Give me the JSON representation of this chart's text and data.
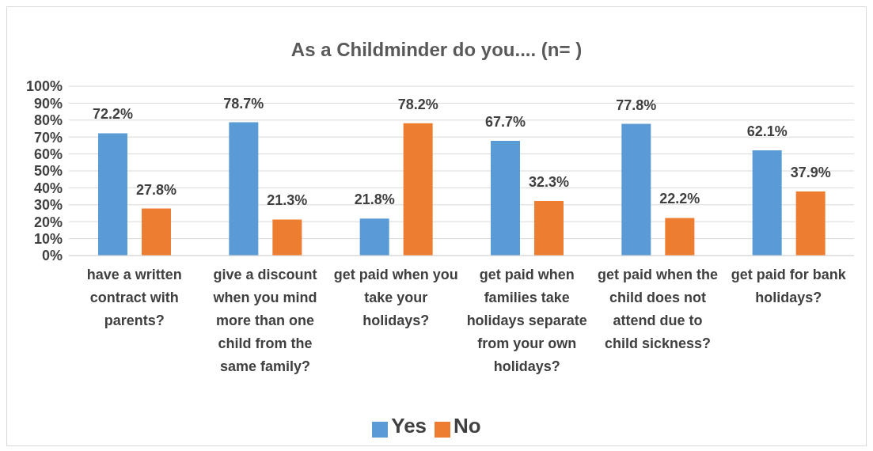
{
  "chart_data": {
    "type": "bar",
    "title": "As a Childminder do you.... (n=   )",
    "categories": [
      "have a written contract with parents?",
      "give a discount when you mind more than one child from the same family?",
      "get paid when you take your holidays?",
      "get paid when families take holidays separate from your own holidays?",
      "get paid when the child does not attend due to child sickness?",
      "get paid for bank holidays?"
    ],
    "series": [
      {
        "name": "Yes",
        "color": "#5b9bd5",
        "values": [
          72.2,
          78.7,
          21.8,
          67.7,
          77.8,
          62.1
        ],
        "value_labels": [
          "72.2%",
          "78.7%",
          "21.8%",
          "67.7%",
          "77.8%",
          "62.1%"
        ]
      },
      {
        "name": "No",
        "color": "#ed7d31",
        "values": [
          27.8,
          21.3,
          78.2,
          32.3,
          22.2,
          37.9
        ],
        "value_labels": [
          "27.8%",
          "21.3%",
          "78.2%",
          "32.3%",
          "22.2%",
          "37.9%"
        ]
      }
    ],
    "ylim": [
      0,
      100
    ],
    "yticks": [
      {
        "value": 0,
        "label": "0%"
      },
      {
        "value": 10,
        "label": "10%"
      },
      {
        "value": 20,
        "label": "20%"
      },
      {
        "value": 30,
        "label": "30%"
      },
      {
        "value": 40,
        "label": "40%"
      },
      {
        "value": 50,
        "label": "50%"
      },
      {
        "value": 60,
        "label": "60%"
      },
      {
        "value": 70,
        "label": "70%"
      },
      {
        "value": 80,
        "label": "80%"
      },
      {
        "value": 90,
        "label": "90%"
      },
      {
        "value": 100,
        "label": "100%"
      }
    ],
    "grid": "y",
    "legend": "bottom"
  }
}
